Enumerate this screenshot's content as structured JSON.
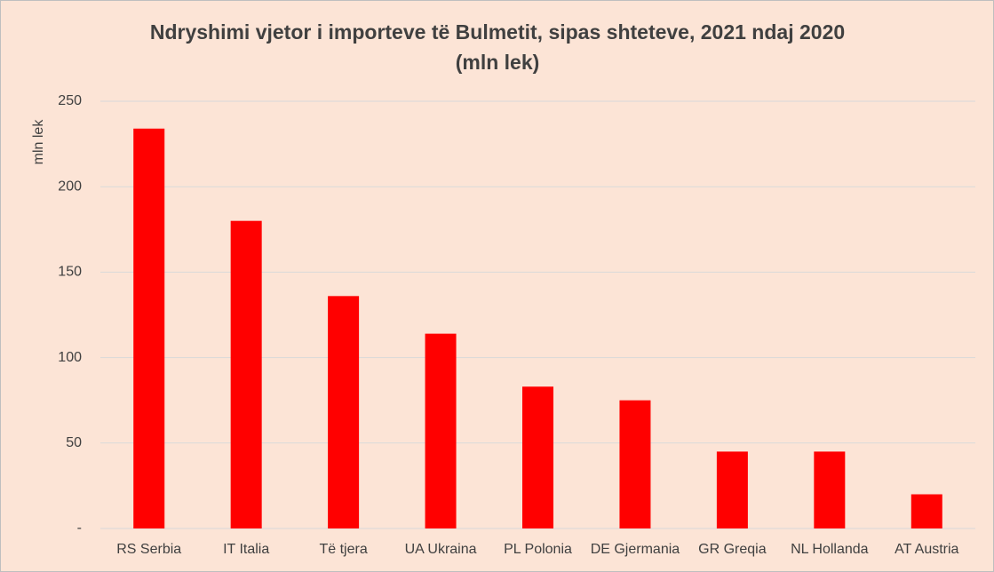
{
  "chart_data": {
    "type": "bar",
    "title": "Ndryshimi vjetor i importeve të Bulmetit, sipas shteteve, 2021 ndaj 2020",
    "subtitle": "(mln lek)",
    "y_label": "mln lek",
    "categories": [
      "RS Serbia",
      "IT Italia",
      "Të tjera",
      "UA Ukraina",
      "PL Polonia",
      "DE Gjermania",
      "GR Greqia",
      "NL Hollanda",
      "AT Austria"
    ],
    "values": [
      234,
      180,
      136,
      114,
      83,
      75,
      45,
      45,
      20
    ],
    "color": "#ff0000",
    "ylim": [
      0,
      250
    ],
    "yticks": [
      {
        "value": 0,
        "label": "-"
      },
      50,
      100,
      150,
      200,
      250
    ],
    "grid": true
  }
}
